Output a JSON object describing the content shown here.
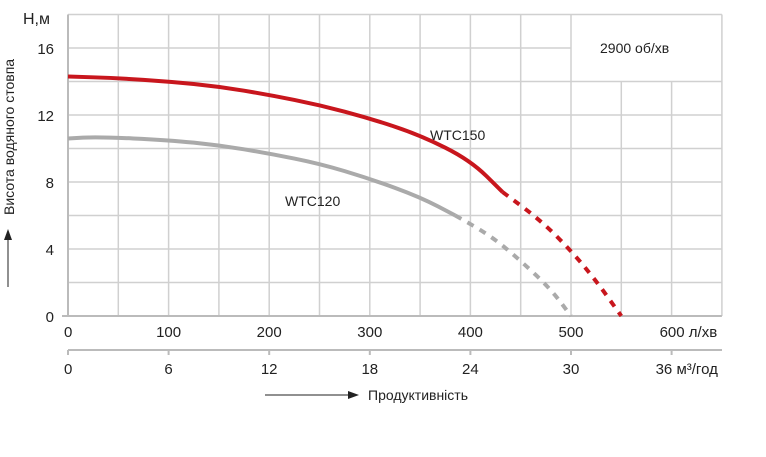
{
  "chart_data": {
    "type": "line",
    "xlabel": "Продуктивність",
    "ylabel": "Висота водяного стовпа",
    "y_unit_label": "H,м",
    "x_unit_label": "л/хв",
    "x2_unit_label": "м³/год",
    "annotation": "2900 об/хв",
    "xlim": [
      0,
      650
    ],
    "ylim": [
      0,
      18
    ],
    "x_ticks": [
      0,
      100,
      200,
      300,
      400,
      500,
      600
    ],
    "x2_ticks": [
      0,
      6,
      12,
      18,
      24,
      30,
      36
    ],
    "y_ticks": [
      0,
      4,
      8,
      12,
      16
    ],
    "grid": true,
    "series": [
      {
        "name": "WTC150",
        "color": "#c8161d",
        "solid": [
          [
            0,
            14.3
          ],
          [
            50,
            14.2
          ],
          [
            100,
            14.0
          ],
          [
            150,
            13.7
          ],
          [
            200,
            13.2
          ],
          [
            250,
            12.6
          ],
          [
            300,
            11.8
          ],
          [
            350,
            10.8
          ],
          [
            400,
            9.3
          ],
          [
            432,
            7.4
          ]
        ],
        "dashed": [
          [
            432,
            7.4
          ],
          [
            470,
            5.7
          ],
          [
            500,
            3.9
          ],
          [
            525,
            2.1
          ],
          [
            550,
            0
          ]
        ]
      },
      {
        "name": "WTC120",
        "color": "#aaaaaa",
        "solid": [
          [
            0,
            10.6
          ],
          [
            30,
            10.7
          ],
          [
            100,
            10.5
          ],
          [
            150,
            10.2
          ],
          [
            200,
            9.7
          ],
          [
            250,
            9.1
          ],
          [
            300,
            8.2
          ],
          [
            350,
            7.1
          ],
          [
            385,
            6.0
          ]
        ],
        "dashed": [
          [
            385,
            6.0
          ],
          [
            420,
            4.8
          ],
          [
            450,
            3.3
          ],
          [
            480,
            1.6
          ],
          [
            500,
            0
          ]
        ]
      }
    ]
  }
}
